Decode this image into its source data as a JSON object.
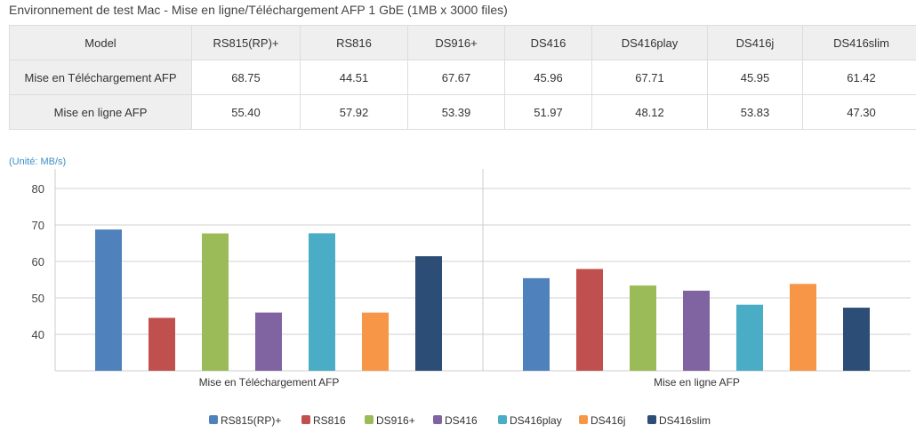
{
  "title": "Environnement de test Mac - Mise en ligne/Téléchargement AFP 1 GbE (1MB x 3000 files)",
  "table": {
    "header": [
      "Model",
      "RS815(RP)+",
      "RS816",
      "DS916+",
      "DS416",
      "DS416play",
      "DS416j",
      "DS416slim"
    ],
    "rows": [
      [
        "Mise en Téléchargement AFP",
        "68.75",
        "44.51",
        "67.67",
        "45.96",
        "67.71",
        "45.95",
        "61.42"
      ],
      [
        "Mise en ligne AFP",
        "55.40",
        "57.92",
        "53.39",
        "51.97",
        "48.12",
        "53.83",
        "47.30"
      ]
    ]
  },
  "chart_data": {
    "type": "bar",
    "unit_label": "(Unité: MB/s)",
    "categories": [
      "Mise en Téléchargement AFP",
      "Mise en ligne AFP"
    ],
    "series": [
      {
        "name": "RS815(RP)+",
        "color": "#4f81bd",
        "values": [
          68.75,
          55.4
        ]
      },
      {
        "name": "RS816",
        "color": "#c0504d",
        "values": [
          44.51,
          57.92
        ]
      },
      {
        "name": "DS916+",
        "color": "#9bbb59",
        "values": [
          67.67,
          53.39
        ]
      },
      {
        "name": "DS416",
        "color": "#8064a2",
        "values": [
          45.96,
          51.97
        ]
      },
      {
        "name": "DS416play",
        "color": "#4bacc6",
        "values": [
          67.71,
          48.12
        ]
      },
      {
        "name": "DS416j",
        "color": "#f79646",
        "values": [
          45.95,
          53.83
        ]
      },
      {
        "name": "DS416slim",
        "color": "#2c4d75",
        "values": [
          61.42,
          47.3
        ]
      }
    ],
    "ylim": [
      30,
      80
    ],
    "yticks": [
      40,
      50,
      60,
      70,
      80
    ],
    "grid": true,
    "legend": "bottom"
  }
}
